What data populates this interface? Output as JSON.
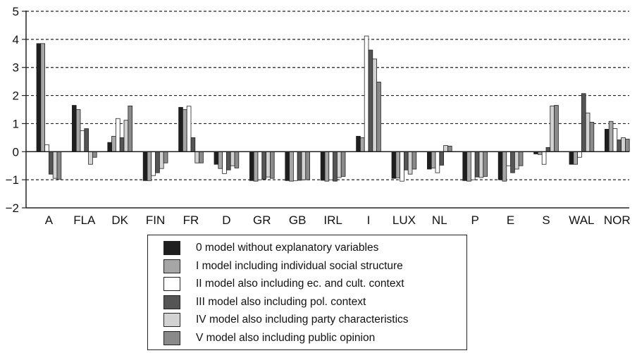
{
  "chart_data": {
    "type": "bar",
    "title": "",
    "xlabel": "",
    "ylabel": "",
    "ylim": [
      -2,
      5
    ],
    "yticks": [
      "5",
      "4",
      "3",
      "2",
      "1",
      "0",
      "−1",
      "−2"
    ],
    "ytick_values": [
      5,
      4,
      3,
      2,
      1,
      0,
      -1,
      -2
    ],
    "grid": "horizontal dashed",
    "legend_placement": "bottom",
    "categories": [
      "A",
      "FLA",
      "DK",
      "FIN",
      "FR",
      "D",
      "GR",
      "GB",
      "IRL",
      "I",
      "LUX",
      "NL",
      "P",
      "E",
      "S",
      "WAL",
      "NOR"
    ],
    "series": [
      {
        "name": "0 model without explanatory variables",
        "color": "#1f1f1f",
        "values": [
          3.85,
          1.65,
          0.33,
          -1.03,
          1.58,
          -0.45,
          -1.03,
          -1.03,
          -1.02,
          0.55,
          -0.95,
          -0.62,
          -1.03,
          -1.0,
          -0.08,
          -0.45,
          0.8
        ]
      },
      {
        "name": "I model including individual social structure",
        "color": "#a6a6a6",
        "values": [
          3.85,
          1.5,
          0.55,
          -1.03,
          1.5,
          -0.6,
          -1.05,
          -1.05,
          -1.05,
          0.5,
          -0.93,
          -0.58,
          -1.05,
          -1.05,
          -0.1,
          -0.45,
          1.08
        ]
      },
      {
        "name": "II model also including ec. and cult. context",
        "color": "#ffffff",
        "values": [
          0.25,
          0.75,
          1.18,
          -0.85,
          1.62,
          -0.78,
          -1.0,
          -1.03,
          -1.0,
          4.12,
          -1.05,
          -0.75,
          -1.0,
          -0.5,
          -0.45,
          -0.2,
          0.82
        ]
      },
      {
        "name": "III model also including pol. context",
        "color": "#555555",
        "values": [
          -0.8,
          0.82,
          0.5,
          -0.75,
          0.5,
          -0.65,
          -0.98,
          -1.02,
          -1.05,
          3.62,
          -0.65,
          -0.48,
          -0.9,
          -0.75,
          0.15,
          2.07,
          0.42
        ]
      },
      {
        "name": "IV model also including party characteristics",
        "color": "#d2d2d2",
        "values": [
          -0.95,
          -0.45,
          1.12,
          -0.6,
          -0.4,
          -0.5,
          -0.9,
          -1.0,
          -0.92,
          3.3,
          -0.8,
          0.22,
          -0.92,
          -0.62,
          1.63,
          1.38,
          0.5
        ]
      },
      {
        "name": "V model also including public opinion",
        "color": "#8a8a8a",
        "values": [
          -0.98,
          -0.2,
          1.63,
          -0.4,
          -0.4,
          -0.58,
          -0.95,
          -1.0,
          -0.88,
          2.48,
          -0.62,
          0.2,
          -0.88,
          -0.5,
          1.65,
          1.05,
          0.45
        ]
      }
    ]
  }
}
